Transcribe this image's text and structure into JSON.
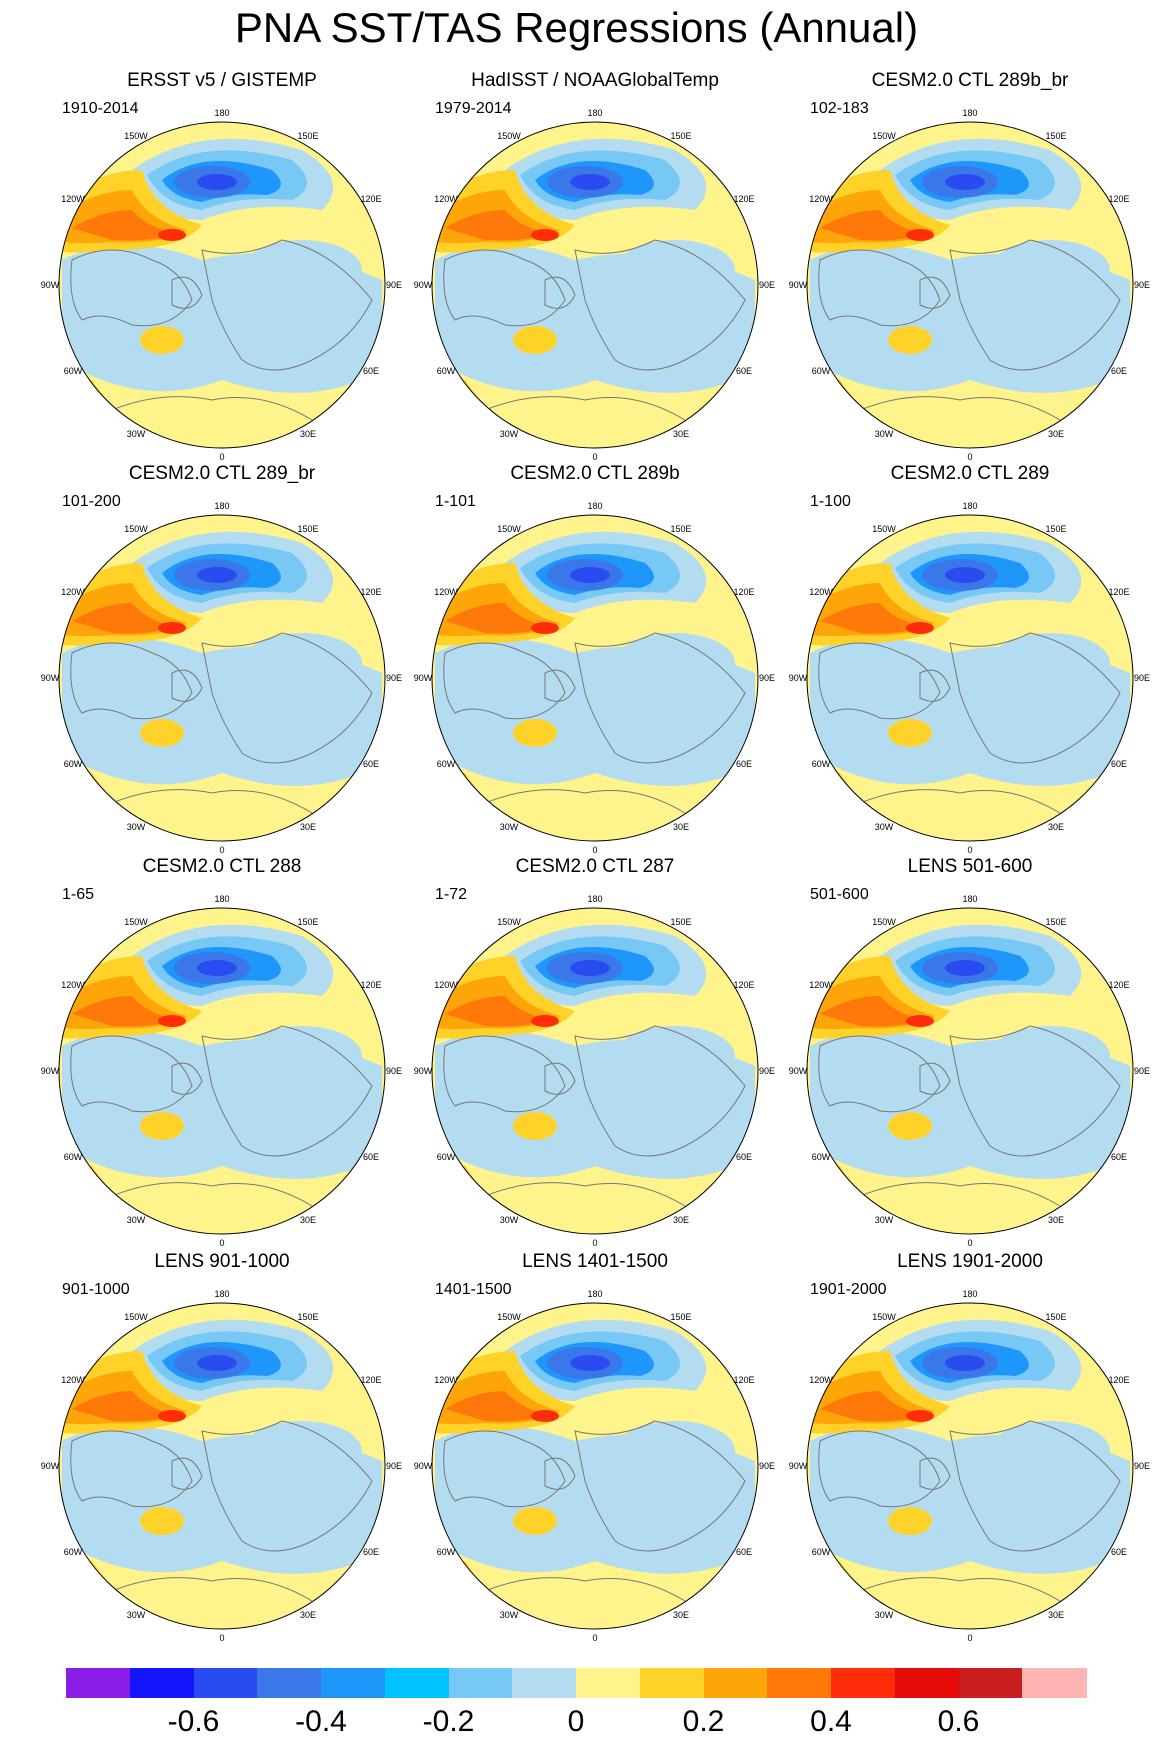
{
  "title": "PNA SST/TAS Regressions (Annual)",
  "panels": [
    {
      "title": "ERSST v5 / GISTEMP",
      "period": "1910-2014"
    },
    {
      "title": "HadISST / NOAAGlobalTemp",
      "period": "1979-2014"
    },
    {
      "title": "CESM2.0 CTL 289b_br",
      "period": "102-183"
    },
    {
      "title": "CESM2.0 CTL 289_br",
      "period": "101-200"
    },
    {
      "title": "CESM2.0 CTL 289b",
      "period": "1-101"
    },
    {
      "title": "CESM2.0 CTL 289",
      "period": "1-100"
    },
    {
      "title": "CESM2.0 CTL 288",
      "period": "1-65"
    },
    {
      "title": "CESM2.0 CTL 287",
      "period": "1-72"
    },
    {
      "title": "LENS 501-600",
      "period": "501-600"
    },
    {
      "title": "LENS 901-1000",
      "period": "901-1000"
    },
    {
      "title": "LENS 1401-1500",
      "period": "1401-1500"
    },
    {
      "title": "LENS 1901-2000",
      "period": "1901-2000"
    }
  ],
  "longitude_labels": [
    "180",
    "150E",
    "120E",
    "90E",
    "60E",
    "30E",
    "0",
    "30W",
    "60W",
    "90W",
    "120W",
    "150W"
  ],
  "colorbar": {
    "colors": [
      "#8a1ee6",
      "#1414ff",
      "#2a4bf0",
      "#3a78ea",
      "#1f96fa",
      "#00c3ff",
      "#78c8f5",
      "#b4dcf0",
      "#fff38c",
      "#fed229",
      "#fea50a",
      "#fe780a",
      "#ff2d0a",
      "#e60a0a",
      "#c81e1e",
      "#ffb4b4"
    ],
    "tick_labels": [
      "-0.6",
      "-0.4",
      "-0.2",
      "0",
      "0.2",
      "0.4",
      "0.6"
    ]
  }
}
